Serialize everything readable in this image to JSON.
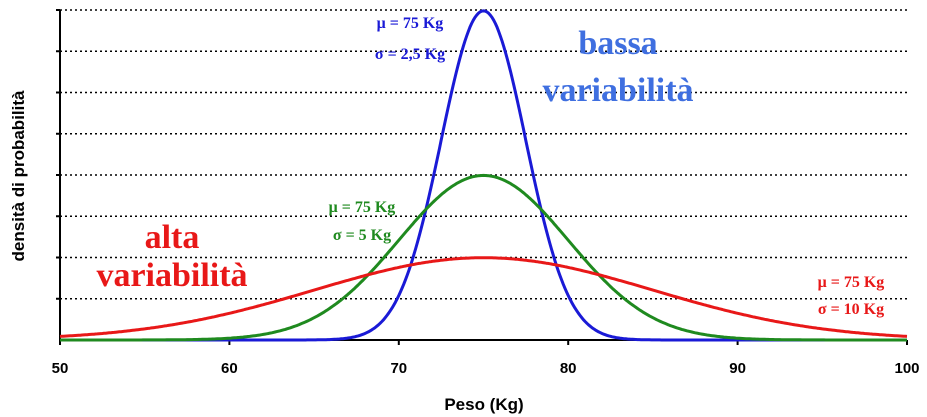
{
  "chart_data": {
    "type": "line",
    "xlabel": "Peso (Kg)",
    "ylabel": "densità di probabilità",
    "xlim": [
      50,
      100
    ],
    "ylim": [
      0,
      0.16
    ],
    "x_ticks": [
      "50",
      "60",
      "70",
      "80",
      "90",
      "100"
    ],
    "grid": "horizontal dotted",
    "series": [
      {
        "key": "narrow",
        "color": "#1a1ad6",
        "distribution": "normal",
        "mean": 75,
        "sd": 2.5,
        "x": [
          65,
          67.5,
          70,
          71,
          72,
          73,
          74,
          75,
          76,
          77,
          78,
          79,
          80,
          82.5,
          85
        ],
        "y": [
          0.0001,
          0.0018,
          0.0216,
          0.0444,
          0.0777,
          0.116,
          0.1475,
          0.1596,
          0.1475,
          0.116,
          0.0777,
          0.0444,
          0.0216,
          0.0018,
          0.0001
        ]
      },
      {
        "key": "medium",
        "color": "#1f8a1f",
        "distribution": "normal",
        "mean": 75,
        "sd": 5,
        "x": [
          55,
          60,
          65,
          67.5,
          70,
          72.5,
          75,
          77.5,
          80,
          82.5,
          85,
          90,
          95
        ],
        "y": [
          0.0,
          0.0009,
          0.0108,
          0.0259,
          0.0484,
          0.0704,
          0.0798,
          0.0704,
          0.0484,
          0.0259,
          0.0108,
          0.0009,
          0.0
        ]
      },
      {
        "key": "wide",
        "color": "#e81818",
        "distribution": "normal",
        "mean": 75,
        "sd": 10,
        "x": [
          50,
          55,
          60,
          65,
          70,
          75,
          80,
          85,
          90,
          95,
          100
        ],
        "y": [
          0.0018,
          0.0054,
          0.013,
          0.0242,
          0.0352,
          0.0399,
          0.0352,
          0.0242,
          0.013,
          0.0054,
          0.0018
        ]
      }
    ],
    "annotations": {
      "narrow_mu": "μ = 75 Kg",
      "narrow_sigma": "σ = 2,5 Kg",
      "narrow_label_1": "bassa",
      "narrow_label_2": "variabilità",
      "medium_mu": "μ = 75 Kg",
      "medium_sigma": "σ = 5 Kg",
      "wide_mu": "μ = 75 Kg",
      "wide_sigma": "σ = 10 Kg",
      "wide_label_1": "alta",
      "wide_label_2": "variabilità"
    }
  }
}
